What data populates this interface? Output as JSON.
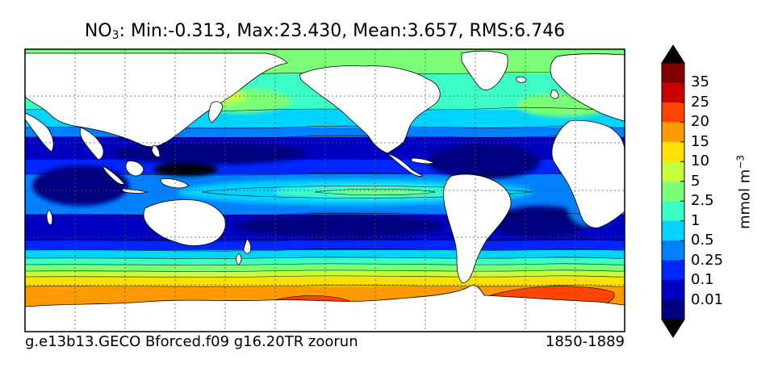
{
  "title": {
    "variable": "NO",
    "subscript": "3",
    "stats": ": Min:-0.313, Max:23.430, Mean:3.657, RMS:6.746"
  },
  "footer": {
    "case_name": "g.e13b13.GECO Bforced.f09 g16.20TR zoorun",
    "period": "1850-1889"
  },
  "colorbar": {
    "units_base": "mmol m",
    "units_exp": "−3",
    "levels": [
      "35",
      "25",
      "20",
      "15",
      "10",
      "5",
      "2.5",
      "1",
      "0.5",
      "0.25",
      "0.1",
      "0.01"
    ],
    "colors_top_to_bottom": [
      "#800000",
      "#c80000",
      "#ff4500",
      "#ff9a00",
      "#ffe000",
      "#c8ff3c",
      "#7cff78",
      "#3cffc8",
      "#00d4ff",
      "#0080ff",
      "#0026ff",
      "#0000c0",
      "#000080"
    ],
    "over_color": "#000000",
    "under_color": "#000000"
  },
  "map": {
    "land_color": "#ffffff",
    "grid": "dotted",
    "projection": "cylindrical"
  }
}
